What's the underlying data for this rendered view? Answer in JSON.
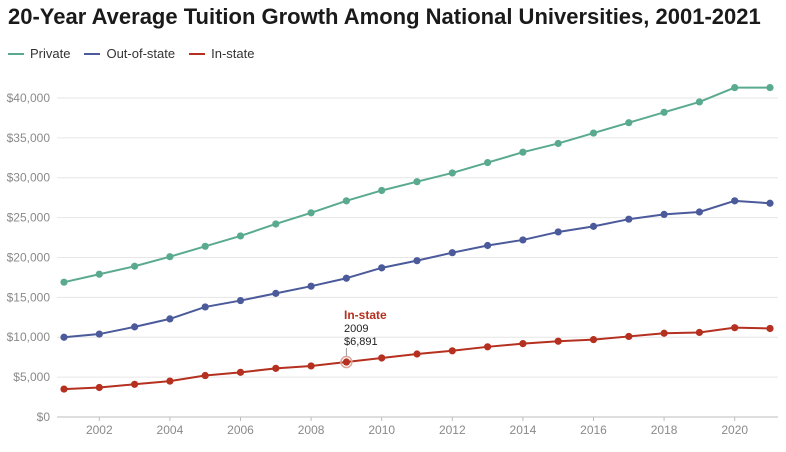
{
  "title": "20-Year Average Tuition Growth Among National Universities, 2001-2021",
  "legend": [
    {
      "name": "Private",
      "color": "#5aaa90"
    },
    {
      "name": "Out-of-state",
      "color": "#4b5a9a"
    },
    {
      "name": "In-state",
      "color": "#b5301f"
    }
  ],
  "tooltip": {
    "series": "In-state",
    "year": "2009",
    "value": "$6,891"
  },
  "chart_data": {
    "type": "line",
    "title": "20-Year Average Tuition Growth Among National Universities, 2001-2021",
    "xlabel": "",
    "ylabel": "",
    "x": [
      2001,
      2002,
      2003,
      2004,
      2005,
      2006,
      2007,
      2008,
      2009,
      2010,
      2011,
      2012,
      2013,
      2014,
      2015,
      2016,
      2017,
      2018,
      2019,
      2020,
      2021
    ],
    "xticks": [
      "2002",
      "2004",
      "2006",
      "2008",
      "2010",
      "2012",
      "2014",
      "2016",
      "2018",
      "2020"
    ],
    "yticks": [
      "$0",
      "$5,000",
      "$10,000",
      "$15,000",
      "$20,000",
      "$25,000",
      "$30,000",
      "$35,000",
      "$40,000"
    ],
    "ylim": [
      0,
      42000
    ],
    "grid": true,
    "legend_position": "top-left",
    "series": [
      {
        "name": "Private",
        "color": "#5aaa90",
        "values": [
          16900,
          17900,
          18900,
          20100,
          21400,
          22700,
          24200,
          25600,
          27100,
          28400,
          29500,
          30600,
          31900,
          33200,
          34300,
          35600,
          36900,
          38200,
          39500,
          41300,
          41300
        ]
      },
      {
        "name": "Out-of-state",
        "color": "#4b5a9a",
        "values": [
          10000,
          10400,
          11300,
          12300,
          13800,
          14600,
          15500,
          16400,
          17400,
          18700,
          19600,
          20600,
          21500,
          22200,
          23200,
          23900,
          24800,
          25400,
          25700,
          27100,
          26800
        ]
      },
      {
        "name": "In-state",
        "color": "#b5301f",
        "values": [
          3500,
          3700,
          4100,
          4500,
          5200,
          5600,
          6100,
          6400,
          6891,
          7400,
          7900,
          8300,
          8800,
          9200,
          9500,
          9700,
          10100,
          10500,
          10600,
          11200,
          11100
        ]
      }
    ]
  }
}
